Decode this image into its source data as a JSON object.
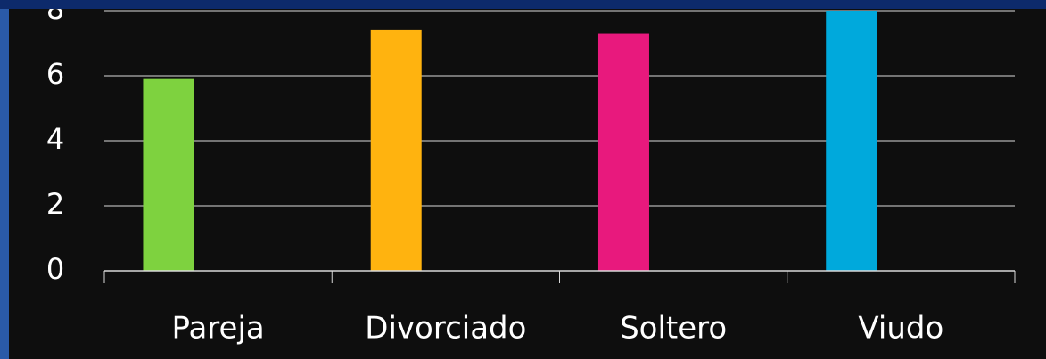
{
  "chart_data": {
    "type": "bar",
    "categories": [
      "Pareja",
      "Divorciado",
      "Soltero",
      "Viudo"
    ],
    "values": [
      5.9,
      7.4,
      7.3,
      8
    ],
    "colors": [
      "#7ed23f",
      "#ffb30f",
      "#e8197d",
      "#00a9dc"
    ],
    "ylim": [
      0,
      8
    ],
    "yticks": [
      0,
      2,
      4,
      6,
      8
    ],
    "grid": true
  }
}
